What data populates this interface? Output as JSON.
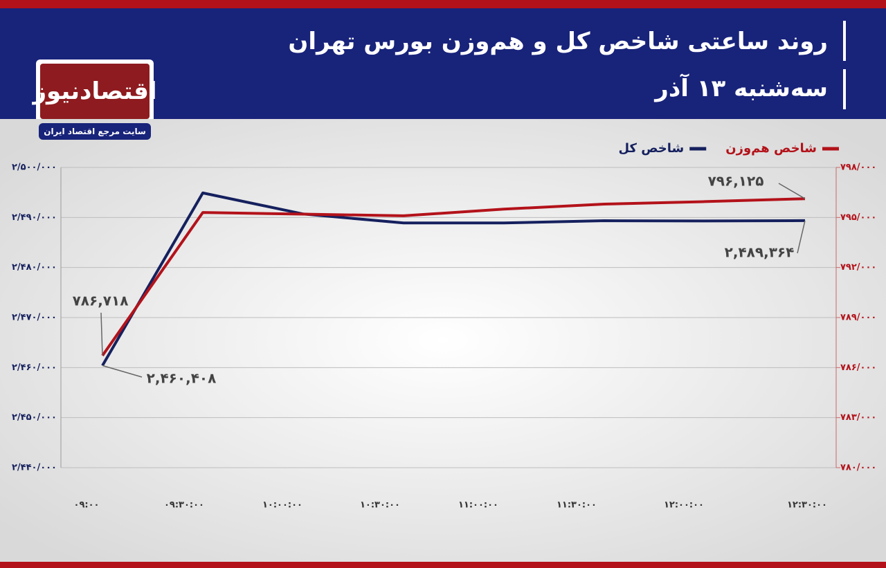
{
  "logo": {
    "name": "اقتصادنیوز",
    "tagline": "سایت مرجع اقتصاد ایران"
  },
  "chart_data": {
    "type": "line",
    "title": "روند ساعتی شاخص کل و هم‌وزن بورس تهران",
    "subtitle": "سه‌شنبه ۱۳ آذر",
    "categories": [
      "۰۹:۰۰",
      "۰۹:۳۰:۰۰",
      "۱۰:۰۰:۰۰",
      "۱۰:۳۰:۰۰",
      "۱۱:۰۰:۰۰",
      "۱۱:۳۰:۰۰",
      "۱۲:۰۰:۰۰",
      "۱۲:۳۰:۰۰"
    ],
    "series": [
      {
        "name": "شاخص کل",
        "color": "#15205e",
        "values": [
          2460408,
          2494900,
          2490700,
          2488900,
          2488900,
          2489350,
          2489300,
          2489364
        ],
        "value_labels": [
          "۲,۴۶۰,۴۰۸",
          null,
          null,
          null,
          null,
          null,
          null,
          "۲,۴۸۹,۳۶۴"
        ]
      },
      {
        "name": "شاخص هم‌وزن",
        "color": "#b3121a",
        "axis": "y2",
        "values": [
          786718,
          795300,
          795200,
          795100,
          795500,
          795800,
          795950,
          796125
        ],
        "value_labels": [
          "۷۸۶,۷۱۸",
          null,
          null,
          null,
          null,
          null,
          null,
          "۷۹۶,۱۲۵"
        ]
      }
    ],
    "ylim": [
      2440000,
      2500000
    ],
    "yticks": [
      {
        "value": 2440000,
        "label": "۲/۴۴۰/۰۰۰"
      },
      {
        "value": 2450000,
        "label": "۲/۴۵۰/۰۰۰"
      },
      {
        "value": 2460000,
        "label": "۲/۴۶۰/۰۰۰"
      },
      {
        "value": 2470000,
        "label": "۲/۴۷۰/۰۰۰"
      },
      {
        "value": 2480000,
        "label": "۲/۴۸۰/۰۰۰"
      },
      {
        "value": 2490000,
        "label": "۲/۴۹۰/۰۰۰"
      },
      {
        "value": 2500000,
        "label": "۲/۵۰۰/۰۰۰"
      }
    ],
    "y2lim": [
      780000,
      798000
    ],
    "y2ticks": [
      {
        "value": 780000,
        "label": "۷۸۰/۰۰۰"
      },
      {
        "value": 783000,
        "label": "۷۸۳/۰۰۰"
      },
      {
        "value": 786000,
        "label": "۷۸۶/۰۰۰"
      },
      {
        "value": 789000,
        "label": "۷۸۹/۰۰۰"
      },
      {
        "value": 792000,
        "label": "۷۹۲/۰۰۰"
      },
      {
        "value": 795000,
        "label": "۷۹۵/۰۰۰"
      },
      {
        "value": 798000,
        "label": "۷۹۸/۰۰۰"
      }
    ],
    "grid": true
  }
}
